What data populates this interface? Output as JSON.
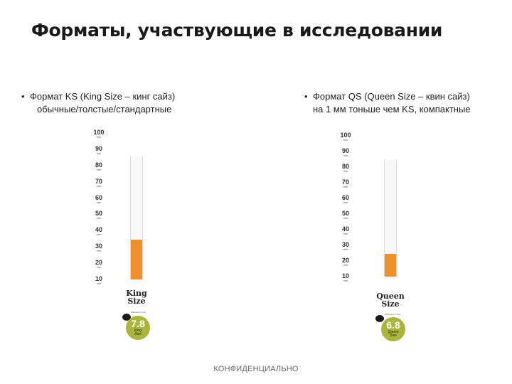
{
  "title": "Форматы, участвующие в исследовании",
  "formats": [
    {
      "heading": "Формат KS (King Size – кинг сайз)",
      "description": "обычные/толстые/стандартные",
      "scale_labels": [
        "100",
        "90",
        "80",
        "70",
        "60",
        "50",
        "40",
        "30",
        "20",
        "10"
      ],
      "scale_unit": "mm",
      "size_label_line1": "King",
      "size_label_line2": "Size",
      "badge_value": "7.8",
      "badge_line1": "King",
      "badge_line2": "Size",
      "badge_small": "Diameter in mm",
      "length_mm": 84,
      "filter_mm": 27
    },
    {
      "heading": "Формат QS (Queen Size – квин сайз)",
      "description": "на 1 мм тоньше чем KS, компактные",
      "scale_labels": [
        "100",
        "90",
        "80",
        "70",
        "60",
        "50",
        "40",
        "30",
        "20",
        "10"
      ],
      "scale_unit": "mm",
      "size_label_line1": "Queen",
      "size_label_line2": "Size",
      "badge_value": "6.8",
      "badge_line1": "Queen",
      "badge_line2": "Size",
      "badge_small": "Diameter in mm",
      "length_mm": 83,
      "filter_mm": 16
    }
  ],
  "footer": "КОНФИДЕНЦИАЛЬНО",
  "colors": {
    "filter": "#f0902a",
    "badge": "#a9b63a",
    "paper": "#f8f8f8"
  }
}
